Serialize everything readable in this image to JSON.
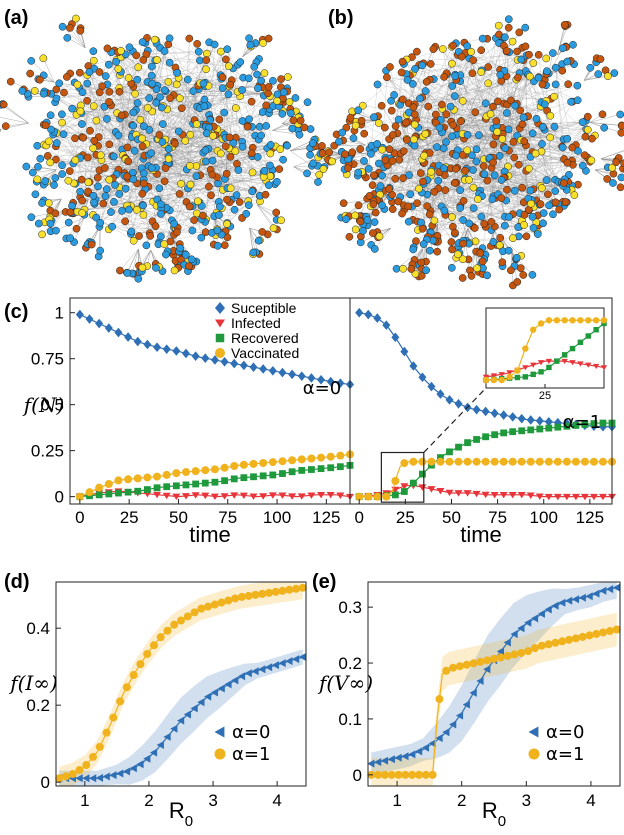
{
  "panels": {
    "a": "(a)",
    "b": "(b)",
    "c": "(c)",
    "d": "(d)",
    "e": "(e)"
  },
  "colors": {
    "susceptible": "#2e6fb5",
    "infected": "#e8353b",
    "recovered": "#1e9a3c",
    "vaccinated": "#f0b21d",
    "node_blue": "#2b9be0",
    "node_orange": "#c4560f",
    "node_yellow": "#f7df2b",
    "edge": "#8c8c8c"
  },
  "network": {
    "a": {
      "node_fractions": {
        "blue": 0.5,
        "orange": 0.28,
        "yellow": 0.22
      }
    },
    "b": {
      "node_fractions": {
        "blue": 0.38,
        "orange": 0.45,
        "yellow": 0.17
      }
    }
  },
  "chart_data": [
    {
      "type": "line",
      "panel": "c-left",
      "xlabel": "time",
      "ylabel": "f(N)",
      "xlim": [
        -5,
        137
      ],
      "ylim": [
        -0.04,
        1.08
      ],
      "xticks": [
        "0",
        "25",
        "50",
        "75",
        "100",
        "125"
      ],
      "yticks": [
        "0",
        "0.25",
        "0.5",
        "0.75",
        "1"
      ],
      "annotation": "α=0",
      "legend": [
        "Suceptible",
        "Infected",
        "Recovered",
        "Vaccinated"
      ],
      "series": [
        {
          "name": "Suceptible",
          "x": [
            0,
            10,
            20,
            30,
            40,
            50,
            60,
            70,
            80,
            90,
            100,
            110,
            120,
            130,
            137
          ],
          "y": [
            0.99,
            0.94,
            0.89,
            0.84,
            0.81,
            0.79,
            0.76,
            0.74,
            0.72,
            0.7,
            0.68,
            0.66,
            0.64,
            0.62,
            0.61
          ]
        },
        {
          "name": "Infected",
          "x": [
            0,
            10,
            20,
            30,
            40,
            50,
            60,
            70,
            80,
            90,
            100,
            110,
            120,
            130,
            137
          ],
          "y": [
            0.0,
            0.02,
            0.03,
            0.02,
            0.01,
            0.0,
            0.01,
            0.0,
            0.01,
            0.0,
            0.01,
            0.0,
            0.01,
            0.01,
            0.0
          ]
        },
        {
          "name": "Recovered",
          "x": [
            0,
            10,
            20,
            30,
            40,
            50,
            60,
            70,
            80,
            90,
            100,
            110,
            120,
            130,
            137
          ],
          "y": [
            0.0,
            0.01,
            0.02,
            0.03,
            0.05,
            0.06,
            0.07,
            0.08,
            0.1,
            0.11,
            0.12,
            0.14,
            0.15,
            0.16,
            0.17
          ]
        },
        {
          "name": "Vaccinated",
          "x": [
            0,
            10,
            20,
            30,
            40,
            50,
            60,
            70,
            80,
            90,
            100,
            110,
            120,
            130,
            137
          ],
          "y": [
            0.0,
            0.05,
            0.09,
            0.1,
            0.11,
            0.13,
            0.14,
            0.15,
            0.17,
            0.18,
            0.19,
            0.2,
            0.21,
            0.22,
            0.23
          ]
        }
      ]
    },
    {
      "type": "line",
      "panel": "c-right",
      "xlabel": "time",
      "xlim": [
        -5,
        137
      ],
      "ylim": [
        -0.04,
        1.08
      ],
      "xticks": [
        "0",
        "25",
        "50",
        "75",
        "100",
        "125"
      ],
      "annotation": "α=1",
      "inset_tick": "25",
      "series": [
        {
          "name": "Suceptible",
          "x": [
            0,
            5,
            10,
            15,
            20,
            25,
            30,
            35,
            40,
            45,
            50,
            60,
            70,
            80,
            90,
            100,
            110,
            120,
            130,
            137
          ],
          "y": [
            1.0,
            0.99,
            0.97,
            0.93,
            0.86,
            0.78,
            0.7,
            0.64,
            0.59,
            0.55,
            0.52,
            0.48,
            0.46,
            0.44,
            0.42,
            0.41,
            0.4,
            0.39,
            0.38,
            0.38
          ]
        },
        {
          "name": "Infected",
          "x": [
            0,
            10,
            15,
            20,
            25,
            30,
            35,
            40,
            45,
            50,
            60,
            70,
            80,
            90,
            100,
            110,
            120,
            130,
            137
          ],
          "y": [
            0.0,
            0.01,
            0.02,
            0.04,
            0.06,
            0.06,
            0.05,
            0.04,
            0.03,
            0.02,
            0.02,
            0.01,
            0.01,
            0.01,
            0.0,
            0.0,
            0.0,
            0.0,
            0.0
          ]
        },
        {
          "name": "Recovered",
          "x": [
            0,
            10,
            20,
            25,
            30,
            35,
            40,
            45,
            50,
            60,
            70,
            80,
            90,
            100,
            110,
            120,
            130,
            137
          ],
          "y": [
            0.0,
            0.0,
            0.01,
            0.03,
            0.08,
            0.13,
            0.18,
            0.22,
            0.25,
            0.3,
            0.33,
            0.35,
            0.36,
            0.37,
            0.38,
            0.39,
            0.4,
            0.4
          ]
        },
        {
          "name": "Vaccinated",
          "x": [
            0,
            10,
            15,
            18,
            20,
            22,
            24,
            26,
            30,
            40,
            50,
            60,
            70,
            80,
            90,
            100,
            110,
            120,
            130,
            137
          ],
          "y": [
            0.0,
            0.0,
            0.0,
            0.03,
            0.1,
            0.16,
            0.18,
            0.19,
            0.19,
            0.19,
            0.19,
            0.19,
            0.19,
            0.19,
            0.19,
            0.19,
            0.19,
            0.19,
            0.19,
            0.19
          ]
        }
      ]
    },
    {
      "type": "line",
      "panel": "d",
      "xlabel": "R0",
      "ylabel": "f(I∞)",
      "xlim": [
        0.55,
        4.45
      ],
      "ylim": [
        -0.01,
        0.52
      ],
      "xticks": [
        "1",
        "2",
        "3",
        "4"
      ],
      "yticks": [
        "0",
        "0.2",
        "0.4"
      ],
      "legend": [
        "α=0",
        "α=1"
      ],
      "series": [
        {
          "name": "α=0",
          "x": [
            0.6,
            0.9,
            1.2,
            1.5,
            1.7,
            1.9,
            2.1,
            2.3,
            2.5,
            2.7,
            2.9,
            3.1,
            3.3,
            3.5,
            3.7,
            3.9,
            4.1,
            4.3,
            4.4
          ],
          "y": [
            0.01,
            0.01,
            0.01,
            0.02,
            0.03,
            0.05,
            0.08,
            0.12,
            0.16,
            0.19,
            0.22,
            0.24,
            0.26,
            0.28,
            0.29,
            0.3,
            0.31,
            0.32,
            0.325
          ]
        },
        {
          "name": "α=1",
          "x": [
            0.6,
            0.8,
            1.0,
            1.2,
            1.4,
            1.6,
            1.8,
            2.0,
            2.2,
            2.4,
            2.6,
            2.8,
            3.0,
            3.2,
            3.4,
            3.6,
            3.8,
            4.0,
            4.2,
            4.4
          ],
          "y": [
            0.01,
            0.02,
            0.04,
            0.08,
            0.15,
            0.23,
            0.29,
            0.34,
            0.38,
            0.41,
            0.43,
            0.45,
            0.46,
            0.47,
            0.48,
            0.485,
            0.49,
            0.495,
            0.5,
            0.505
          ]
        }
      ]
    },
    {
      "type": "line",
      "panel": "e",
      "xlabel": "R0",
      "ylabel": "f(V∞)",
      "xlim": [
        0.55,
        4.45
      ],
      "ylim": [
        -0.02,
        0.345
      ],
      "xticks": [
        "1",
        "2",
        "3",
        "4"
      ],
      "yticks": [
        "0",
        "0.1",
        "0.2",
        "0.3"
      ],
      "legend": [
        "α=0",
        "α=1"
      ],
      "series": [
        {
          "name": "α=0",
          "x": [
            0.6,
            0.8,
            1.0,
            1.2,
            1.4,
            1.6,
            1.8,
            2.0,
            2.2,
            2.4,
            2.6,
            2.8,
            3.0,
            3.2,
            3.4,
            3.6,
            3.8,
            4.0,
            4.2,
            4.4
          ],
          "y": [
            0.02,
            0.025,
            0.03,
            0.035,
            0.045,
            0.06,
            0.08,
            0.11,
            0.15,
            0.19,
            0.22,
            0.25,
            0.27,
            0.285,
            0.3,
            0.31,
            0.315,
            0.32,
            0.33,
            0.335
          ]
        },
        {
          "name": "α=1",
          "x": [
            0.6,
            0.8,
            1.0,
            1.2,
            1.4,
            1.55,
            1.62,
            1.7,
            1.8,
            2.0,
            2.2,
            2.4,
            2.6,
            2.8,
            3.0,
            3.2,
            3.4,
            3.6,
            3.8,
            4.0,
            4.2,
            4.4
          ],
          "y": [
            0.0,
            0.0,
            0.0,
            0.0,
            0.0,
            0.0,
            0.1,
            0.18,
            0.19,
            0.195,
            0.2,
            0.205,
            0.21,
            0.215,
            0.22,
            0.23,
            0.235,
            0.24,
            0.245,
            0.25,
            0.255,
            0.26
          ]
        }
      ]
    }
  ]
}
